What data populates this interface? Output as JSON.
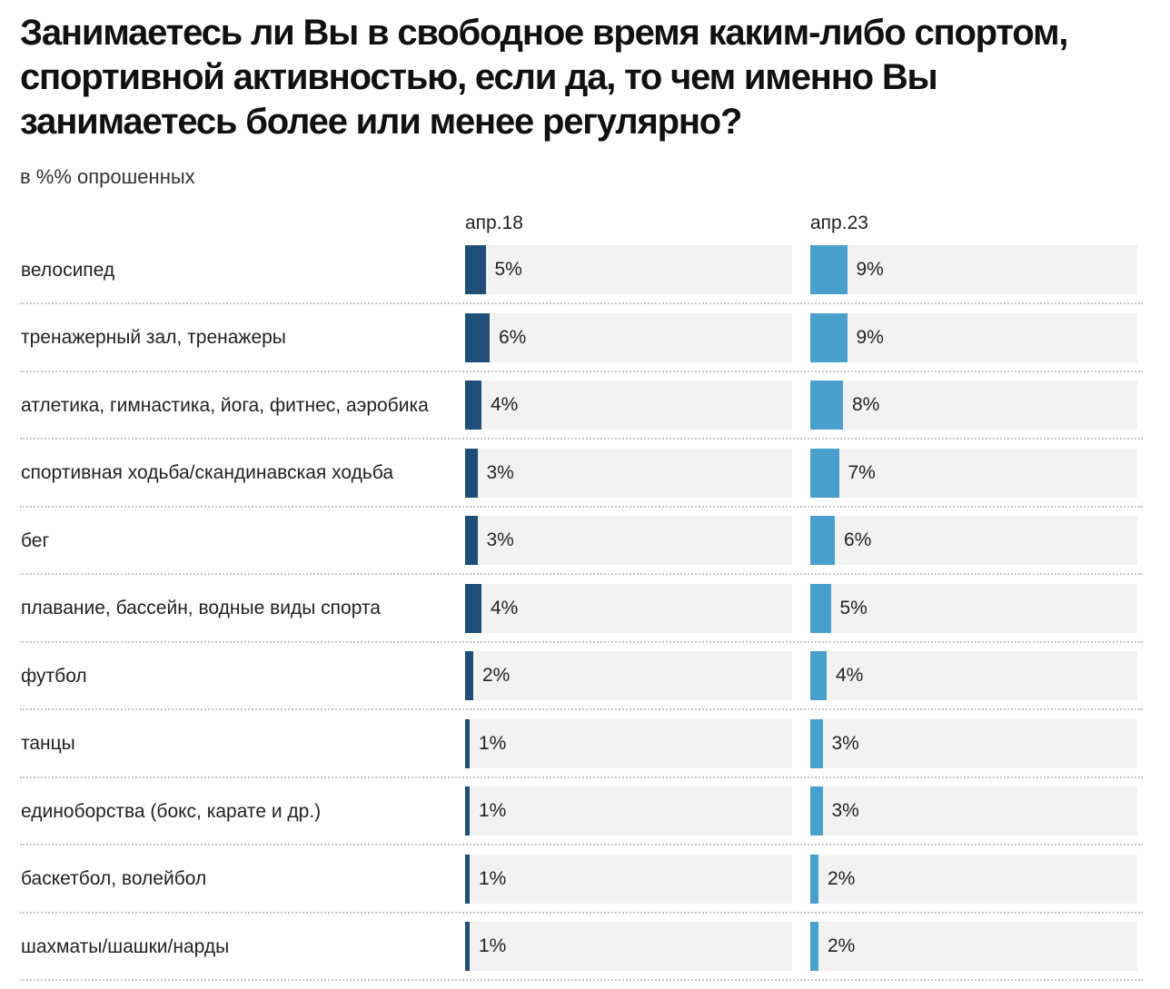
{
  "chart_data": {
    "type": "bar",
    "orientation": "horizontal",
    "title": "Занимаетесь ли Вы в свободное время каким-либо спортом, спортивной активностью, если да, то чем именно Вы занимаетесь более или менее регулярно?",
    "subtitle": "в %% опрошенных",
    "categories": [
      "велосипед",
      "тренажерный зал, тренажеры",
      "атлетика, гимнастика, йога, фитнес, аэробика",
      "спортивная ходьба/скандинавская ходьба",
      "бег",
      "плавание, бассейн, водные виды спорта",
      "футбол",
      "танцы",
      "единоборства (бокс, карате и др.)",
      "баскетбол, волейбол",
      "шахматы/шашки/нарды"
    ],
    "series": [
      {
        "name": "апр.18",
        "color": "#1f4e79",
        "values": [
          5,
          6,
          4,
          3,
          3,
          4,
          2,
          1,
          1,
          1,
          1
        ]
      },
      {
        "name": "апр.23",
        "color": "#4aa0cd",
        "values": [
          9,
          9,
          8,
          7,
          6,
          5,
          4,
          3,
          3,
          2,
          2
        ]
      }
    ],
    "value_suffix": "%",
    "xlim": [
      0,
      80
    ]
  }
}
